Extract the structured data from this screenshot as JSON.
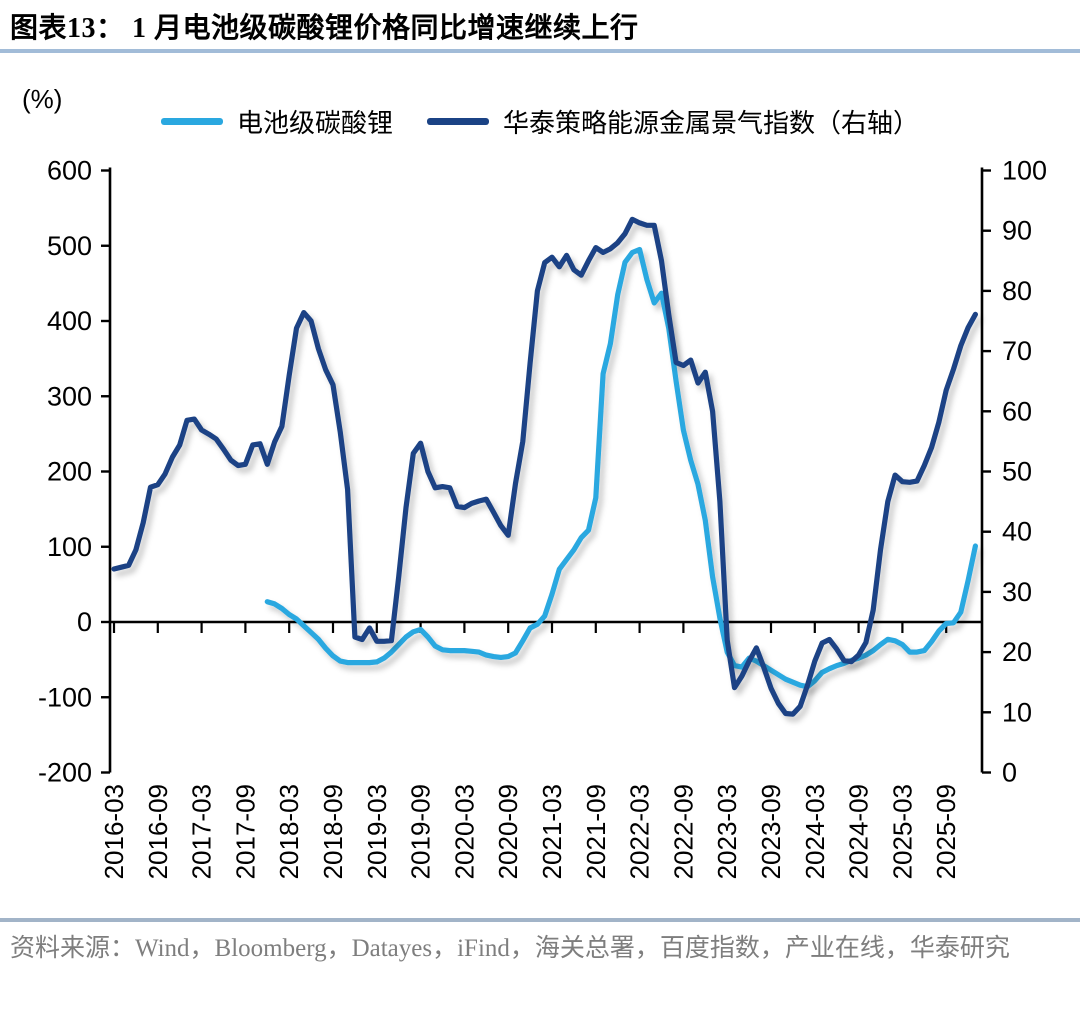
{
  "header": {
    "figure_no": "图表13：",
    "title": "1 月电池级碳酸锂价格同比增速继续上行"
  },
  "unit_label": "(%)",
  "legend": [
    {
      "label": "电池级碳酸锂",
      "color": "#2AA8E0"
    },
    {
      "label": "华泰策略能源金属景气指数（右轴）",
      "color": "#1B4385"
    }
  ],
  "source_note": "资料来源：Wind，Bloomberg，Datayes，iFind，海关总署，百度指数，产业在线，华泰研究",
  "colors": {
    "lithium_line": "#2AA8E0",
    "index_line": "#1B4385",
    "title_underline": "#A2BCD8",
    "footer_divider": "#A2B4C8",
    "source_text": "#7E7E7E",
    "axis": "#000000"
  },
  "chart_data": {
    "type": "line",
    "title": "1 月电池级碳酸锂价格同比增速继续上行",
    "frequency": "monthly",
    "left_axis": {
      "label": "(%)",
      "min": -200,
      "max": 600,
      "tick_step": 100
    },
    "right_axis": {
      "label": "右轴",
      "min": 0,
      "max": 100,
      "tick_step": 10
    },
    "x_tick_labels": [
      "2016-03",
      "2016-09",
      "2017-03",
      "2017-09",
      "2018-03",
      "2018-09",
      "2019-03",
      "2019-09",
      "2020-03",
      "2020-09",
      "2021-03",
      "2021-09",
      "2022-03",
      "2022-09",
      "2023-03",
      "2023-09",
      "2024-03",
      "2024-09",
      "2025-03",
      "2025-09"
    ],
    "series": [
      {
        "name": "电池级碳酸锂",
        "axis": "left",
        "color": "#2AA8E0",
        "start": "2017-12",
        "end": "2026-01",
        "values": [
          27,
          24,
          18,
          10,
          4,
          -5,
          -14,
          -23,
          -35,
          -45,
          -52,
          -54,
          -54,
          -54,
          -54,
          -53,
          -48,
          -40,
          -30,
          -20,
          -13,
          -10,
          -20,
          -32,
          -37,
          -38,
          -38,
          -38,
          -39,
          -40,
          -44,
          -46,
          -47,
          -46,
          -41,
          -25,
          -8,
          -3,
          8,
          37,
          70,
          83,
          96,
          112,
          122,
          165,
          330,
          370,
          435,
          478,
          491,
          495,
          455,
          424,
          437,
          390,
          320,
          255,
          215,
          183,
          135,
          60,
          5,
          -40,
          -58,
          -60,
          -48,
          -52,
          -58,
          -64,
          -70,
          -76,
          -80,
          -84,
          -86,
          -78,
          -67,
          -62,
          -58,
          -55,
          -51,
          -48,
          -44,
          -38,
          -30,
          -23,
          -25,
          -30,
          -40,
          -40,
          -38,
          -26,
          -12,
          -2,
          -1,
          13,
          55,
          101
        ]
      },
      {
        "name": "华泰策略能源金属景气指数（右轴）",
        "axis": "right",
        "color": "#1B4385",
        "start": "2016-03",
        "end": "2026-01",
        "values": [
          33.8,
          34.1,
          34.4,
          37.0,
          41.5,
          47.4,
          47.8,
          49.6,
          52.4,
          54.4,
          58.5,
          58.7,
          56.9,
          56.2,
          55.4,
          53.7,
          51.9,
          51.0,
          51.2,
          54.4,
          54.6,
          51.2,
          54.9,
          57.5,
          66.0,
          73.8,
          76.4,
          75.0,
          70.4,
          66.9,
          64.4,
          56.5,
          47.0,
          22.5,
          22.1,
          24.0,
          21.8,
          21.8,
          21.9,
          32.5,
          44.0,
          53.0,
          54.7,
          50.0,
          47.3,
          47.5,
          47.3,
          44.2,
          44.0,
          44.7,
          45.1,
          45.4,
          43.2,
          41.0,
          39.4,
          48.0,
          55.0,
          68.0,
          80.0,
          84.7,
          85.6,
          84.0,
          85.9,
          83.5,
          82.6,
          85.0,
          87.2,
          86.4,
          87.0,
          88.0,
          89.5,
          91.9,
          91.3,
          90.9,
          90.9,
          85.0,
          76.0,
          68.1,
          67.6,
          68.5,
          64.7,
          66.5,
          60.0,
          45.0,
          22.0,
          14.1,
          16.0,
          18.5,
          20.7,
          17.5,
          14.0,
          11.5,
          9.8,
          9.7,
          11.0,
          14.5,
          18.5,
          21.5,
          22.1,
          20.5,
          18.6,
          18.4,
          19.5,
          21.6,
          27.0,
          37.0,
          45.0,
          49.4,
          48.3,
          48.2,
          48.4,
          51.0,
          54.0,
          58.2,
          63.5,
          67.0,
          70.9,
          73.9,
          76.1
        ]
      }
    ]
  }
}
